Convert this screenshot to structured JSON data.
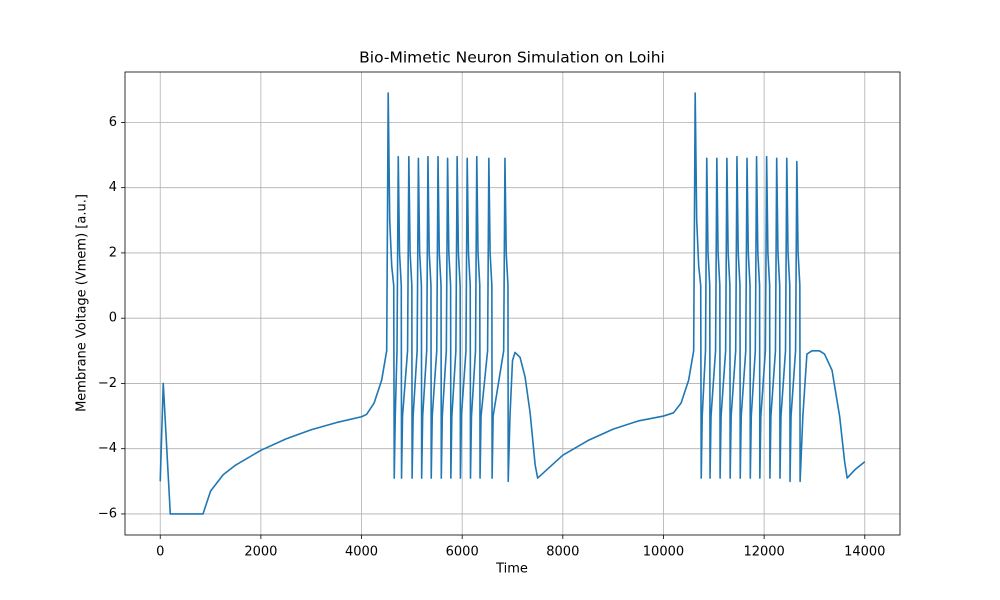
{
  "chart_data": {
    "type": "line",
    "title": "Bio-Mimetic Neuron Simulation on Loihi",
    "x_label": "Time",
    "y_label": "Membrane Voltage (Vmem) [a.u.]",
    "color": "#1f77b4",
    "grid": true,
    "xlim": [
      -700,
      14700
    ],
    "ylim": [
      -6.645,
      7.545
    ],
    "xticks": [
      0,
      2000,
      4000,
      6000,
      8000,
      10000,
      12000,
      14000
    ],
    "yticks": [
      {
        "value": -6,
        "label": "−6"
      },
      {
        "value": -4,
        "label": "−4"
      },
      {
        "value": -2,
        "label": "−2"
      },
      0,
      2,
      4,
      6
    ],
    "x": [
      0,
      60,
      130,
      200,
      850,
      1000,
      1250,
      1500,
      2000,
      2500,
      3000,
      3500,
      4000,
      4100,
      4250,
      4400,
      4500,
      4530,
      4560,
      4600,
      4640,
      4650,
      4670,
      4705,
      4730,
      4755,
      4790,
      4795,
      4815,
      4915,
      4940,
      4965,
      5000,
      5005,
      5025,
      5105,
      5130,
      5155,
      5190,
      5195,
      5215,
      5295,
      5320,
      5345,
      5380,
      5385,
      5405,
      5495,
      5520,
      5545,
      5580,
      5585,
      5605,
      5685,
      5710,
      5735,
      5770,
      5775,
      5795,
      5875,
      5900,
      5925,
      5960,
      5965,
      5985,
      6075,
      6100,
      6125,
      6160,
      6165,
      6185,
      6265,
      6290,
      6315,
      6350,
      6355,
      6375,
      6505,
      6530,
      6555,
      6590,
      6595,
      6615,
      6825,
      6850,
      6875,
      6910,
      6915,
      6950,
      7000,
      7050,
      7150,
      7250,
      7350,
      7450,
      7500,
      8000,
      8500,
      9000,
      9500,
      10000,
      10200,
      10350,
      10500,
      10600,
      10630,
      10660,
      10700,
      10740,
      10750,
      10770,
      10835,
      10860,
      10885,
      10920,
      10925,
      10945,
      11035,
      11060,
      11085,
      11120,
      11125,
      11145,
      11235,
      11260,
      11285,
      11320,
      11325,
      11345,
      11435,
      11460,
      11485,
      11520,
      11525,
      11545,
      11635,
      11660,
      11685,
      11720,
      11725,
      11745,
      11825,
      11850,
      11875,
      11910,
      11915,
      11935,
      12025,
      12050,
      12075,
      12110,
      12115,
      12135,
      12225,
      12250,
      12275,
      12310,
      12315,
      12335,
      12425,
      12450,
      12475,
      12510,
      12515,
      12535,
      12625,
      12650,
      12675,
      12710,
      12715,
      12770,
      12850,
      12950,
      13100,
      13200,
      13350,
      13500,
      13600,
      13650,
      13800,
      14000
    ],
    "values": [
      -5,
      -2,
      -4,
      -6,
      -6,
      -5.3,
      -4.8,
      -4.5,
      -4.05,
      -3.7,
      -3.42,
      -3.2,
      -3.02,
      -2.95,
      -2.6,
      -1.9,
      -1,
      6.9,
      3,
      1.6,
      1,
      -4.9,
      -3,
      -1,
      4.95,
      2,
      1,
      -4.9,
      -3,
      -1,
      4.95,
      2,
      1,
      -4.9,
      -3,
      -1,
      4.9,
      2,
      1,
      -4.9,
      -3,
      -1,
      4.95,
      2,
      1,
      -4.9,
      -3,
      -1,
      4.95,
      2,
      1,
      -4.9,
      -3,
      -1,
      4.9,
      2,
      1,
      -4.9,
      -3,
      -1,
      4.95,
      2,
      1,
      -4.9,
      -3,
      -1,
      4.9,
      2,
      1,
      -4.9,
      -3,
      -1,
      4.95,
      2,
      1,
      -4.9,
      -3,
      -1,
      4.9,
      2,
      1,
      -4.9,
      -3,
      -1,
      4.9,
      2,
      1,
      -5,
      -3,
      -1.3,
      -1.05,
      -1.2,
      -1.8,
      -2.9,
      -4.5,
      -4.9,
      -4.2,
      -3.75,
      -3.4,
      -3.15,
      -3,
      -2.9,
      -2.6,
      -1.9,
      -1,
      6.9,
      3,
      1.6,
      1,
      -4.9,
      -3,
      -1,
      4.9,
      2,
      1,
      -4.9,
      -3,
      -1,
      4.9,
      2,
      1,
      -4.9,
      -3,
      -1,
      4.9,
      2,
      1,
      -4.9,
      -3,
      -1,
      4.95,
      2,
      1,
      -4.9,
      -3,
      -1,
      4.9,
      2,
      1,
      -4.9,
      -3,
      -1,
      4.95,
      2,
      1,
      -4.9,
      -3,
      -1,
      4.95,
      2,
      1,
      -4.9,
      -3,
      -1,
      4.9,
      2,
      1,
      -4.9,
      -3,
      -1,
      4.9,
      2,
      1,
      -5,
      -3,
      -1,
      4.8,
      2,
      1,
      -5,
      -3,
      -1.1,
      -1,
      -1,
      -1.1,
      -1.6,
      -3,
      -4.4,
      -4.9,
      -4.65,
      -4.4
    ]
  }
}
